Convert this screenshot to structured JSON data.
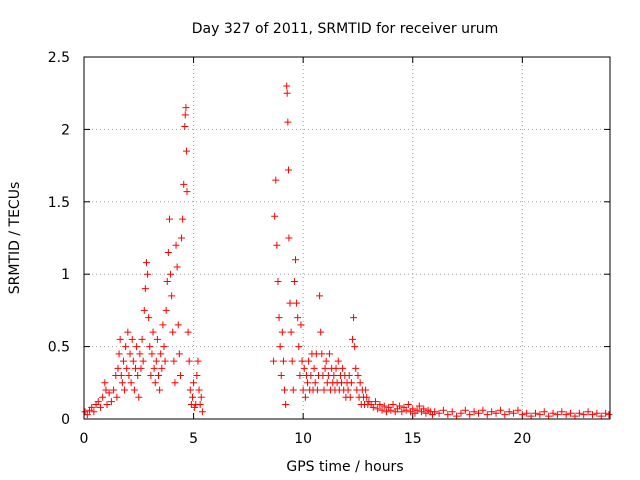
{
  "chart_data": {
    "type": "scatter",
    "title": "Day 327 of 2011, SRMTID for receiver urum",
    "xlabel": "GPS time / hours",
    "ylabel": "SRMTID / TECUs",
    "xlim": [
      0,
      24
    ],
    "ylim": [
      0,
      2.5
    ],
    "xticks": [
      0,
      5,
      10,
      15,
      20
    ],
    "xtick_labels": [
      "0",
      "5",
      "10",
      "15",
      "20"
    ],
    "yticks": [
      0,
      0.5,
      1,
      1.5,
      2,
      2.5
    ],
    "ytick_labels": [
      "0",
      "0.5",
      "1",
      "1.5",
      "2",
      "2.5"
    ],
    "grid": true,
    "marker": "+",
    "series": [
      {
        "name": "SRMTID",
        "color": "#ff0000",
        "points": [
          [
            0.05,
            0.05
          ],
          [
            0.15,
            0.03
          ],
          [
            0.25,
            0.06
          ],
          [
            0.35,
            0.08
          ],
          [
            0.45,
            0.05
          ],
          [
            0.55,
            0.1
          ],
          [
            0.65,
            0.12
          ],
          [
            0.75,
            0.08
          ],
          [
            0.85,
            0.15
          ],
          [
            0.95,
            0.25
          ],
          [
            1.0,
            0.2
          ],
          [
            1.05,
            0.1
          ],
          [
            1.15,
            0.18
          ],
          [
            1.25,
            0.12
          ],
          [
            1.35,
            0.2
          ],
          [
            1.45,
            0.3
          ],
          [
            1.5,
            0.15
          ],
          [
            1.55,
            0.35
          ],
          [
            1.6,
            0.45
          ],
          [
            1.65,
            0.55
          ],
          [
            1.7,
            0.3
          ],
          [
            1.75,
            0.25
          ],
          [
            1.8,
            0.4
          ],
          [
            1.85,
            0.2
          ],
          [
            1.9,
            0.5
          ],
          [
            1.95,
            0.35
          ],
          [
            2.0,
            0.6
          ],
          [
            2.05,
            0.3
          ],
          [
            2.1,
            0.45
          ],
          [
            2.15,
            0.25
          ],
          [
            2.2,
            0.55
          ],
          [
            2.25,
            0.4
          ],
          [
            2.3,
            0.2
          ],
          [
            2.35,
            0.35
          ],
          [
            2.4,
            0.5
          ],
          [
            2.45,
            0.3
          ],
          [
            2.5,
            0.15
          ],
          [
            2.55,
            0.45
          ],
          [
            2.6,
            0.35
          ],
          [
            2.65,
            0.55
          ],
          [
            2.7,
            0.4
          ],
          [
            2.75,
            0.75
          ],
          [
            2.8,
            0.9
          ],
          [
            2.85,
            1.08
          ],
          [
            2.9,
            1.0
          ],
          [
            2.95,
            0.7
          ],
          [
            3.0,
            0.5
          ],
          [
            3.05,
            0.3
          ],
          [
            3.1,
            0.45
          ],
          [
            3.15,
            0.6
          ],
          [
            3.2,
            0.35
          ],
          [
            3.25,
            0.25
          ],
          [
            3.3,
            0.4
          ],
          [
            3.35,
            0.55
          ],
          [
            3.4,
            0.3
          ],
          [
            3.45,
            0.2
          ],
          [
            3.5,
            0.45
          ],
          [
            3.55,
            0.35
          ],
          [
            3.6,
            0.65
          ],
          [
            3.65,
            0.5
          ],
          [
            3.7,
            0.4
          ],
          [
            3.75,
            0.75
          ],
          [
            3.8,
            0.95
          ],
          [
            3.85,
            1.15
          ],
          [
            3.9,
            1.38
          ],
          [
            3.95,
            1.0
          ],
          [
            4.0,
            0.85
          ],
          [
            4.05,
            0.6
          ],
          [
            4.1,
            0.4
          ],
          [
            4.15,
            0.25
          ],
          [
            4.2,
            1.2
          ],
          [
            4.25,
            1.05
          ],
          [
            4.3,
            0.65
          ],
          [
            4.35,
            0.45
          ],
          [
            4.4,
            0.3
          ],
          [
            4.45,
            1.25
          ],
          [
            4.5,
            1.38
          ],
          [
            4.55,
            1.62
          ],
          [
            4.6,
            2.02
          ],
          [
            4.62,
            2.1
          ],
          [
            4.65,
            2.15
          ],
          [
            4.68,
            1.85
          ],
          [
            4.7,
            1.57
          ],
          [
            4.75,
            0.6
          ],
          [
            4.8,
            0.4
          ],
          [
            4.85,
            0.2
          ],
          [
            4.9,
            0.1
          ],
          [
            4.95,
            0.15
          ],
          [
            5.0,
            0.25
          ],
          [
            5.05,
            0.08
          ],
          [
            5.1,
            0.1
          ],
          [
            5.15,
            0.3
          ],
          [
            5.2,
            0.4
          ],
          [
            5.25,
            0.2
          ],
          [
            5.3,
            0.1
          ],
          [
            5.35,
            0.15
          ],
          [
            5.4,
            0.05
          ],
          [
            8.65,
            0.4
          ],
          [
            8.7,
            1.4
          ],
          [
            8.75,
            1.65
          ],
          [
            8.8,
            1.2
          ],
          [
            8.85,
            0.95
          ],
          [
            8.9,
            0.7
          ],
          [
            8.95,
            0.5
          ],
          [
            9.0,
            0.3
          ],
          [
            9.05,
            0.6
          ],
          [
            9.1,
            0.4
          ],
          [
            9.15,
            0.2
          ],
          [
            9.2,
            0.1
          ],
          [
            9.25,
            2.3
          ],
          [
            9.27,
            2.25
          ],
          [
            9.3,
            2.05
          ],
          [
            9.33,
            1.72
          ],
          [
            9.35,
            1.25
          ],
          [
            9.4,
            0.8
          ],
          [
            9.45,
            0.6
          ],
          [
            9.5,
            0.4
          ],
          [
            9.55,
            0.2
          ],
          [
            9.6,
            0.95
          ],
          [
            9.65,
            1.1
          ],
          [
            9.7,
            0.8
          ],
          [
            9.75,
            0.7
          ],
          [
            9.8,
            0.5
          ],
          [
            9.85,
            0.3
          ],
          [
            9.9,
            0.65
          ],
          [
            9.95,
            0.4
          ],
          [
            10.0,
            0.2
          ],
          [
            10.05,
            0.35
          ],
          [
            10.1,
            0.15
          ],
          [
            10.15,
            0.3
          ],
          [
            10.2,
            0.25
          ],
          [
            10.25,
            0.4
          ],
          [
            10.3,
            0.2
          ],
          [
            10.35,
            0.3
          ],
          [
            10.4,
            0.45
          ],
          [
            10.45,
            0.2
          ],
          [
            10.5,
            0.35
          ],
          [
            10.55,
            0.25
          ],
          [
            10.6,
            0.45
          ],
          [
            10.65,
            0.2
          ],
          [
            10.7,
            0.3
          ],
          [
            10.75,
            0.85
          ],
          [
            10.8,
            0.6
          ],
          [
            10.85,
            0.45
          ],
          [
            10.9,
            0.3
          ],
          [
            10.95,
            0.2
          ],
          [
            11.0,
            0.35
          ],
          [
            11.05,
            0.4
          ],
          [
            11.1,
            0.25
          ],
          [
            11.15,
            0.3
          ],
          [
            11.2,
            0.45
          ],
          [
            11.25,
            0.2
          ],
          [
            11.3,
            0.35
          ],
          [
            11.35,
            0.25
          ],
          [
            11.4,
            0.3
          ],
          [
            11.45,
            0.2
          ],
          [
            11.5,
            0.35
          ],
          [
            11.55,
            0.25
          ],
          [
            11.6,
            0.4
          ],
          [
            11.65,
            0.2
          ],
          [
            11.7,
            0.3
          ],
          [
            11.75,
            0.25
          ],
          [
            11.8,
            0.35
          ],
          [
            11.85,
            0.2
          ],
          [
            11.9,
            0.3
          ],
          [
            11.95,
            0.15
          ],
          [
            12.0,
            0.25
          ],
          [
            12.05,
            0.2
          ],
          [
            12.1,
            0.3
          ],
          [
            12.15,
            0.15
          ],
          [
            12.2,
            0.25
          ],
          [
            12.25,
            0.55
          ],
          [
            12.3,
            0.7
          ],
          [
            12.35,
            0.5
          ],
          [
            12.4,
            0.35
          ],
          [
            12.45,
            0.2
          ],
          [
            12.5,
            0.3
          ],
          [
            12.55,
            0.15
          ],
          [
            12.6,
            0.25
          ],
          [
            12.65,
            0.1
          ],
          [
            12.7,
            0.2
          ],
          [
            12.75,
            0.15
          ],
          [
            12.8,
            0.1
          ],
          [
            12.85,
            0.2
          ],
          [
            12.9,
            0.15
          ],
          [
            12.95,
            0.1
          ],
          [
            13.0,
            0.12
          ],
          [
            13.1,
            0.1
          ],
          [
            13.2,
            0.08
          ],
          [
            13.3,
            0.12
          ],
          [
            13.4,
            0.07
          ],
          [
            13.5,
            0.1
          ],
          [
            13.6,
            0.06
          ],
          [
            13.7,
            0.09
          ],
          [
            13.8,
            0.05
          ],
          [
            13.9,
            0.08
          ],
          [
            14.0,
            0.06
          ],
          [
            14.1,
            0.1
          ],
          [
            14.2,
            0.05
          ],
          [
            14.3,
            0.07
          ],
          [
            14.4,
            0.09
          ],
          [
            14.5,
            0.05
          ],
          [
            14.6,
            0.08
          ],
          [
            14.7,
            0.06
          ],
          [
            14.8,
            0.1
          ],
          [
            14.9,
            0.05
          ],
          [
            15.0,
            0.07
          ],
          [
            15.1,
            0.04
          ],
          [
            15.2,
            0.06
          ],
          [
            15.3,
            0.09
          ],
          [
            15.4,
            0.05
          ],
          [
            15.5,
            0.07
          ],
          [
            15.6,
            0.04
          ],
          [
            15.7,
            0.06
          ],
          [
            15.8,
            0.05
          ],
          [
            15.9,
            0.03
          ],
          [
            16.0,
            0.05
          ],
          [
            16.2,
            0.04
          ],
          [
            16.4,
            0.06
          ],
          [
            16.6,
            0.03
          ],
          [
            16.8,
            0.05
          ],
          [
            17.0,
            0.02
          ],
          [
            17.2,
            0.04
          ],
          [
            17.4,
            0.06
          ],
          [
            17.6,
            0.03
          ],
          [
            17.8,
            0.05
          ],
          [
            18.0,
            0.04
          ],
          [
            18.2,
            0.06
          ],
          [
            18.4,
            0.03
          ],
          [
            18.6,
            0.05
          ],
          [
            18.8,
            0.04
          ],
          [
            19.0,
            0.06
          ],
          [
            19.2,
            0.03
          ],
          [
            19.4,
            0.05
          ],
          [
            19.6,
            0.04
          ],
          [
            19.8,
            0.06
          ],
          [
            20.0,
            0.03
          ],
          [
            20.2,
            0.04
          ],
          [
            20.4,
            0.02
          ],
          [
            20.6,
            0.04
          ],
          [
            20.8,
            0.03
          ],
          [
            21.0,
            0.05
          ],
          [
            21.2,
            0.02
          ],
          [
            21.4,
            0.04
          ],
          [
            21.6,
            0.03
          ],
          [
            21.8,
            0.05
          ],
          [
            22.0,
            0.03
          ],
          [
            22.2,
            0.04
          ],
          [
            22.4,
            0.02
          ],
          [
            22.6,
            0.04
          ],
          [
            22.8,
            0.03
          ],
          [
            23.0,
            0.05
          ],
          [
            23.2,
            0.03
          ],
          [
            23.4,
            0.04
          ],
          [
            23.6,
            0.02
          ],
          [
            23.8,
            0.04
          ],
          [
            23.95,
            0.03
          ]
        ]
      }
    ]
  }
}
